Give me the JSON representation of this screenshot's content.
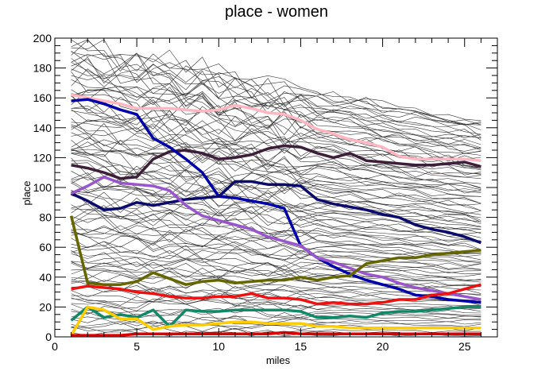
{
  "chart_data": {
    "type": "line",
    "title": "place - women",
    "xlabel": "miles",
    "ylabel": "place",
    "xlim": [
      0,
      27
    ],
    "ylim": [
      0,
      200
    ],
    "xticks": [
      0,
      5,
      10,
      15,
      20,
      25
    ],
    "yticks": [
      0,
      20,
      40,
      60,
      80,
      100,
      120,
      140,
      160,
      180,
      200
    ],
    "grid": false,
    "legend": "none",
    "background_series": {
      "count": 110,
      "color": "#333333",
      "x": [
        1,
        2,
        3,
        4,
        5,
        6,
        7,
        8,
        9,
        10,
        11,
        12,
        13,
        14,
        15,
        16,
        17,
        18,
        19,
        20,
        21,
        22,
        23,
        24,
        25,
        26
      ],
      "start_range": [
        2,
        198
      ],
      "end_range": [
        1,
        145
      ]
    },
    "series": [
      {
        "color": "#ffb6c1",
        "x": [
          1,
          2,
          3,
          4,
          5,
          6,
          7,
          8,
          9,
          10,
          11,
          12,
          13,
          14,
          15,
          16,
          17,
          18,
          19,
          20,
          21,
          22,
          23,
          24,
          25,
          26
        ],
        "values": [
          162,
          160,
          158,
          156,
          153,
          153,
          153,
          152,
          151,
          152,
          155,
          153,
          150,
          149,
          145,
          139,
          136,
          132,
          130,
          127,
          121,
          119,
          119,
          119,
          119,
          118
        ]
      },
      {
        "color": "#3d1f3a",
        "x": [
          1,
          2,
          3,
          4,
          5,
          6,
          7,
          8,
          9,
          10,
          11,
          12,
          13,
          14,
          15,
          16,
          17,
          18,
          19,
          20,
          21,
          22,
          23,
          24,
          25,
          26
        ],
        "values": [
          115,
          113,
          110,
          106,
          107,
          119,
          124,
          125,
          123,
          119,
          120,
          122,
          126,
          128,
          127,
          123,
          120,
          123,
          118,
          117,
          116,
          115,
          115,
          116,
          117,
          114
        ]
      },
      {
        "color": "#0000aa",
        "x": [
          1,
          2,
          3,
          4,
          5,
          6,
          7,
          8,
          9,
          10,
          11,
          12,
          13,
          14,
          15,
          16,
          17,
          18,
          19,
          20,
          21,
          22,
          23,
          24,
          25,
          26
        ],
        "values": [
          158,
          159,
          156,
          152,
          149,
          133,
          127,
          119,
          110,
          94,
          93,
          91,
          89,
          86,
          61,
          53,
          47,
          42,
          38,
          35,
          32,
          28,
          27,
          25,
          24,
          23
        ]
      },
      {
        "color": "#0b0b6e",
        "x": [
          1,
          2,
          3,
          4,
          5,
          6,
          7,
          8,
          9,
          10,
          11,
          12,
          13,
          14,
          15,
          16,
          17,
          18,
          19,
          20,
          21,
          22,
          23,
          24,
          25,
          26
        ],
        "values": [
          96,
          91,
          85,
          86,
          90,
          88,
          90,
          92,
          93,
          94,
          104,
          104,
          102,
          102,
          101,
          92,
          89,
          87,
          85,
          82,
          80,
          75,
          72,
          70,
          67,
          63
        ]
      },
      {
        "color": "#9955cc",
        "x": [
          1,
          2,
          3,
          4,
          5,
          6,
          7,
          8,
          9,
          10,
          11,
          12,
          13,
          14,
          15,
          16,
          17,
          18,
          19,
          20,
          21,
          22,
          23,
          24,
          25,
          26
        ],
        "values": [
          96,
          101,
          107,
          103,
          102,
          101,
          98,
          88,
          81,
          78,
          75,
          72,
          67,
          64,
          61,
          53,
          50,
          46,
          42,
          40,
          36,
          33,
          31,
          29,
          27,
          25
        ]
      },
      {
        "color": "#666600",
        "x": [
          1,
          2,
          3,
          4,
          5,
          6,
          7,
          8,
          9,
          10,
          11,
          12,
          13,
          14,
          15,
          16,
          17,
          18,
          19,
          20,
          21,
          22,
          23,
          24,
          25,
          26
        ],
        "values": [
          81,
          36,
          35,
          35,
          37,
          43,
          39,
          35,
          37,
          38,
          36,
          37,
          38,
          38,
          40,
          38,
          40,
          41,
          49,
          51,
          53,
          53,
          55,
          56,
          57,
          58
        ]
      },
      {
        "color": "#ee1111",
        "x": [
          1,
          2,
          3,
          4,
          5,
          6,
          7,
          8,
          9,
          10,
          11,
          12,
          13,
          14,
          15,
          16,
          17,
          18,
          19,
          20,
          21,
          22,
          23,
          24,
          25,
          26
        ],
        "values": [
          32,
          34,
          33,
          32,
          30,
          29,
          27,
          26,
          26,
          27,
          27,
          29,
          26,
          26,
          25,
          22,
          23,
          22,
          22,
          23,
          25,
          25,
          28,
          29,
          32,
          35
        ]
      },
      {
        "color": "#118866",
        "x": [
          1,
          2,
          3,
          4,
          5,
          6,
          7,
          8,
          9,
          10,
          11,
          12,
          13,
          14,
          15,
          16,
          17,
          18,
          19,
          20,
          21,
          22,
          23,
          24,
          25,
          26
        ],
        "values": [
          11,
          20,
          13,
          15,
          13,
          18,
          7,
          18,
          17,
          17,
          18,
          18,
          18,
          18,
          17,
          13,
          13,
          14,
          13,
          16,
          17,
          17,
          18,
          19,
          20,
          20
        ]
      },
      {
        "color": "#ffcc00",
        "x": [
          1,
          2,
          3,
          4,
          5,
          6,
          7,
          8,
          9,
          10,
          11,
          12,
          13,
          14,
          15,
          16,
          17,
          18,
          19,
          20,
          21,
          22,
          23,
          24,
          25,
          26
        ],
        "values": [
          1,
          20,
          18,
          12,
          12,
          5,
          7,
          8,
          8,
          9,
          10,
          10,
          9,
          9,
          9,
          7,
          7,
          6,
          6,
          6,
          6,
          6,
          6,
          6,
          6,
          6
        ]
      },
      {
        "color": "#dd0000",
        "x": [
          1,
          2,
          3,
          4,
          5,
          6,
          7,
          8,
          9,
          10,
          11,
          12,
          13,
          14,
          15,
          16,
          17,
          18,
          19,
          20,
          21,
          22,
          23,
          24,
          25,
          26
        ],
        "values": [
          1,
          1,
          1,
          1,
          2,
          2,
          2,
          2,
          2,
          2,
          2,
          2,
          2,
          3,
          2,
          2,
          2,
          2,
          2,
          2,
          2,
          2,
          2,
          2,
          2,
          2
        ]
      }
    ]
  }
}
